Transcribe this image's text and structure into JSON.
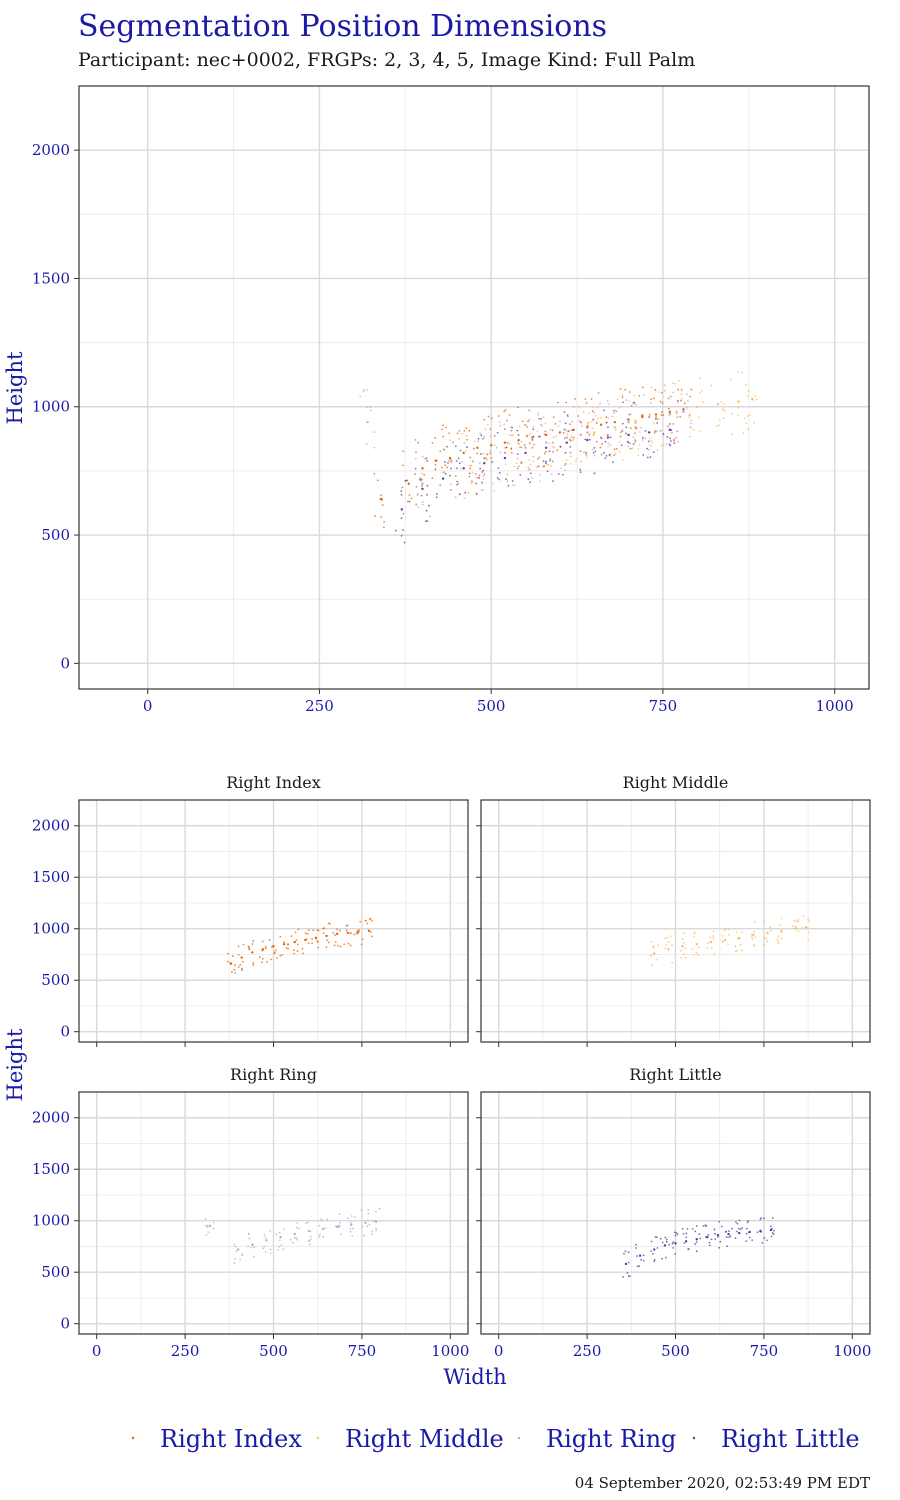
{
  "title": "Segmentation Position Dimensions",
  "subtitle": "Participant: nec+0002, FRGPs: 2, 3, 4, 5, Image Kind: Full Palm",
  "footer": "04 September 2020, 02:53:49 PM EDT",
  "colors": {
    "Right Index": "#e66101",
    "Right Middle": "#fdb863",
    "Right Ring": "#b2abd2",
    "Right Little": "#5e3c99",
    "text_accent": "#1a1aa6",
    "grid": "#d9d9d9",
    "panel_border": "#333333"
  },
  "legend": {
    "position": "bottom",
    "items": [
      "Right Index",
      "Right Middle",
      "Right Ring",
      "Right Little"
    ]
  },
  "chart_data": [
    {
      "id": "combined",
      "type": "scatter",
      "title": "Segmentation Position Dimensions",
      "xlabel": "",
      "ylabel": "Height",
      "xlim": [
        -100,
        1050
      ],
      "ylim": [
        -100,
        2250
      ],
      "xticks": [
        0,
        250,
        500,
        750,
        1000
      ],
      "yticks": [
        0,
        500,
        1000,
        1500,
        2000
      ],
      "grid": true,
      "series": [
        {
          "name": "Right Index",
          "x": [
            340,
            380,
            400,
            420,
            440,
            460,
            480,
            500,
            520,
            540,
            560,
            580,
            600,
            620,
            640,
            660,
            680,
            700,
            720,
            740,
            760,
            780
          ],
          "y": [
            640,
            700,
            760,
            790,
            800,
            820,
            840,
            850,
            860,
            870,
            880,
            890,
            900,
            910,
            920,
            930,
            940,
            950,
            960,
            970,
            980,
            990
          ]
        },
        {
          "name": "Right Middle",
          "x": [
            470,
            500,
            530,
            560,
            590,
            620,
            650,
            680,
            710,
            740,
            770,
            800,
            830,
            860,
            880
          ],
          "y": [
            770,
            800,
            820,
            840,
            860,
            880,
            900,
            920,
            940,
            960,
            980,
            1000,
            1010,
            1020,
            1030
          ]
        },
        {
          "name": "Right Ring",
          "x": [
            320,
            400,
            450,
            490,
            520,
            550,
            580,
            610,
            640,
            670,
            700,
            730,
            760,
            780
          ],
          "y": [
            940,
            700,
            760,
            800,
            820,
            840,
            860,
            880,
            900,
            920,
            940,
            960,
            970,
            980
          ]
        },
        {
          "name": "Right Little",
          "x": [
            370,
            400,
            430,
            460,
            490,
            520,
            550,
            580,
            610,
            640,
            670,
            700,
            730,
            760
          ],
          "y": [
            600,
            680,
            720,
            760,
            780,
            800,
            820,
            840,
            860,
            870,
            880,
            890,
            900,
            910
          ]
        }
      ]
    },
    {
      "id": "facet-right-index",
      "type": "scatter",
      "title": "Right Index",
      "xlim": [
        -50,
        1050
      ],
      "ylim": [
        -100,
        2250
      ],
      "xticks": [
        0,
        250,
        500,
        750,
        1000
      ],
      "yticks": [
        0,
        500,
        1000,
        1500,
        2000
      ],
      "series": [
        {
          "name": "Right Index",
          "x": [
            380,
            410,
            440,
            470,
            500,
            530,
            560,
            590,
            620,
            650,
            680,
            710,
            740,
            770
          ],
          "y": [
            660,
            720,
            770,
            800,
            830,
            850,
            870,
            890,
            910,
            930,
            950,
            960,
            970,
            980
          ]
        }
      ]
    },
    {
      "id": "facet-right-middle",
      "type": "scatter",
      "title": "Right Middle",
      "xlim": [
        -50,
        1050
      ],
      "ylim": [
        -100,
        2250
      ],
      "xticks": [
        0,
        250,
        500,
        750,
        1000
      ],
      "yticks": [
        0,
        500,
        1000,
        1500,
        2000
      ],
      "series": [
        {
          "name": "Right Middle",
          "x": [
            440,
            480,
            520,
            560,
            600,
            640,
            680,
            720,
            760,
            800,
            840,
            870
          ],
          "y": [
            760,
            800,
            830,
            850,
            870,
            890,
            910,
            940,
            960,
            980,
            1000,
            1010
          ]
        }
      ]
    },
    {
      "id": "facet-right-ring",
      "type": "scatter",
      "title": "Right Ring",
      "xlim": [
        -50,
        1050
      ],
      "ylim": [
        -100,
        2250
      ],
      "xticks": [
        0,
        250,
        500,
        750,
        1000
      ],
      "yticks": [
        0,
        500,
        1000,
        1500,
        2000
      ],
      "series": [
        {
          "name": "Right Ring",
          "x": [
            320,
            400,
            440,
            480,
            520,
            560,
            600,
            640,
            680,
            720,
            760,
            790
          ],
          "y": [
            950,
            720,
            770,
            810,
            840,
            870,
            900,
            920,
            940,
            960,
            980,
            990
          ]
        }
      ]
    },
    {
      "id": "facet-right-little",
      "type": "scatter",
      "title": "Right Little",
      "xlim": [
        -50,
        1050
      ],
      "ylim": [
        -100,
        2250
      ],
      "xticks": [
        0,
        250,
        500,
        750,
        1000
      ],
      "yticks": [
        0,
        500,
        1000,
        1500,
        2000
      ],
      "xlabel": "Width",
      "ylabel": "Height",
      "series": [
        {
          "name": "Right Little",
          "x": [
            360,
            400,
            440,
            470,
            500,
            530,
            560,
            590,
            620,
            650,
            680,
            710,
            740,
            770
          ],
          "y": [
            580,
            660,
            720,
            760,
            780,
            800,
            820,
            840,
            860,
            870,
            880,
            890,
            900,
            910
          ]
        }
      ]
    }
  ]
}
